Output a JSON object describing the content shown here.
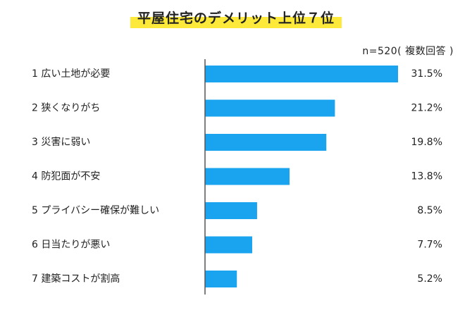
{
  "colors": {
    "bar": "#1aa3ee",
    "highlight": "#fde93a",
    "axis": "#555555"
  },
  "chart_data": {
    "type": "bar",
    "orientation": "horizontal",
    "title": "平屋住宅のデメリット上位７位",
    "note": "n=520( 複数回答 )",
    "categories": [
      "1 広い土地が必要",
      "2 狭くなりがち",
      "3 災害に弱い",
      "4 防犯面が不安",
      "5 プライバシー確保が難しい",
      "6 日当たりが悪い",
      "7 建築コストが割高"
    ],
    "values": [
      31.5,
      21.2,
      19.8,
      13.8,
      8.5,
      7.7,
      5.2
    ],
    "value_labels": [
      "31.5%",
      "21.2%",
      "19.8%",
      "13.8%",
      "8.5%",
      "7.7%",
      "5.2%"
    ],
    "unit": "%",
    "xlim": [
      0,
      31.5
    ],
    "grid": false,
    "legend": "none"
  }
}
